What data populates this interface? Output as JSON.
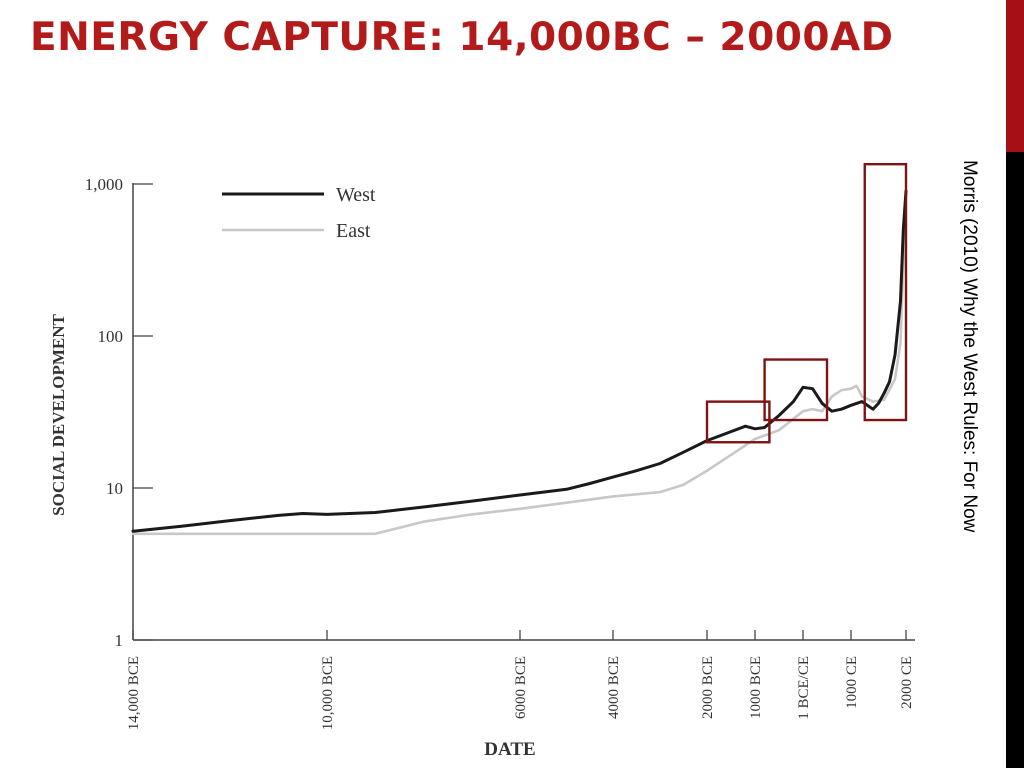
{
  "slide": {
    "title": "ENERGY CAPTURE: 14,000BC – 2000AD",
    "citation": "Morris (2010) Why the West Rules: For Now",
    "title_color": "#b31b1b",
    "accent_red": "#a50f15",
    "highlight_box_color": "#7f1313"
  },
  "chart_data": {
    "type": "line",
    "xlabel": "DATE",
    "ylabel": "SOCIAL DEVELOPMENT",
    "y_scale": "log",
    "ylim": [
      1,
      1000
    ],
    "xlim": [
      -14000,
      2000
    ],
    "y_ticks": [
      {
        "value": 1,
        "label": "1"
      },
      {
        "value": 10,
        "label": "10"
      },
      {
        "value": 100,
        "label": "100"
      },
      {
        "value": 1000,
        "label": "1,000"
      }
    ],
    "x_ticks": [
      {
        "value": -14000,
        "label": "14,000 BCE"
      },
      {
        "value": -10000,
        "label": "10,000 BCE"
      },
      {
        "value": -6000,
        "label": "6000 BCE"
      },
      {
        "value": -4000,
        "label": "4000 BCE"
      },
      {
        "value": -2000,
        "label": "2000 BCE"
      },
      {
        "value": -1000,
        "label": "1000 BCE"
      },
      {
        "value": 0,
        "label": "1 BCE/CE"
      },
      {
        "value": 1000,
        "label": "1000 CE"
      },
      {
        "value": 2000,
        "label": "2000 CE"
      }
    ],
    "legend_position": "top-left",
    "series": [
      {
        "name": "West",
        "color": "#1a1a1a",
        "points": [
          [
            -14000,
            5.2
          ],
          [
            -13000,
            5.6
          ],
          [
            -12000,
            6.1
          ],
          [
            -11000,
            6.6
          ],
          [
            -10500,
            6.8
          ],
          [
            -10000,
            6.7
          ],
          [
            -9000,
            6.9
          ],
          [
            -8000,
            7.5
          ],
          [
            -7000,
            8.2
          ],
          [
            -6000,
            9.0
          ],
          [
            -5500,
            9.4
          ],
          [
            -5000,
            9.8
          ],
          [
            -4500,
            10.7
          ],
          [
            -4000,
            11.8
          ],
          [
            -3500,
            13.0
          ],
          [
            -3000,
            14.5
          ],
          [
            -2500,
            17.2
          ],
          [
            -2000,
            20.5
          ],
          [
            -1500,
            23.5
          ],
          [
            -1200,
            25.5
          ],
          [
            -1000,
            24.5
          ],
          [
            -800,
            25.0
          ],
          [
            -500,
            30.0
          ],
          [
            -200,
            37.0
          ],
          [
            0,
            46.0
          ],
          [
            200,
            45.0
          ],
          [
            400,
            36.0
          ],
          [
            600,
            32.0
          ],
          [
            800,
            33.0
          ],
          [
            1000,
            35.0
          ],
          [
            1200,
            37.0
          ],
          [
            1400,
            33.0
          ],
          [
            1500,
            36.0
          ],
          [
            1600,
            42.0
          ],
          [
            1700,
            50.0
          ],
          [
            1800,
            75.0
          ],
          [
            1900,
            170.0
          ],
          [
            1950,
            500.0
          ],
          [
            2000,
            900.0
          ]
        ]
      },
      {
        "name": "East",
        "color": "#c8c8c8",
        "points": [
          [
            -14000,
            5.0
          ],
          [
            -13000,
            5.0
          ],
          [
            -12000,
            5.0
          ],
          [
            -11000,
            5.0
          ],
          [
            -10000,
            5.0
          ],
          [
            -9000,
            5.0
          ],
          [
            -8000,
            6.0
          ],
          [
            -7000,
            6.7
          ],
          [
            -6000,
            7.3
          ],
          [
            -5000,
            8.0
          ],
          [
            -4000,
            8.8
          ],
          [
            -3000,
            9.4
          ],
          [
            -2500,
            10.5
          ],
          [
            -2000,
            13.0
          ],
          [
            -1500,
            16.5
          ],
          [
            -1000,
            21.0
          ],
          [
            -500,
            24.0
          ],
          [
            0,
            32.0
          ],
          [
            200,
            33.0
          ],
          [
            400,
            32.0
          ],
          [
            600,
            40.0
          ],
          [
            800,
            44.0
          ],
          [
            1000,
            45.0
          ],
          [
            1100,
            47.0
          ],
          [
            1200,
            40.0
          ],
          [
            1400,
            37.0
          ],
          [
            1600,
            38.0
          ],
          [
            1800,
            52.0
          ],
          [
            1900,
            90.0
          ],
          [
            1950,
            300.0
          ],
          [
            2000,
            550.0
          ]
        ]
      }
    ],
    "highlight_periods": [
      {
        "x_range": [
          -2000,
          -700
        ],
        "y_range": [
          20,
          37
        ]
      },
      {
        "x_range": [
          -800,
          500
        ],
        "y_range": [
          28,
          70
        ]
      },
      {
        "x_range": [
          1250,
          2000
        ],
        "y_range": [
          28,
          1350
        ]
      }
    ]
  }
}
